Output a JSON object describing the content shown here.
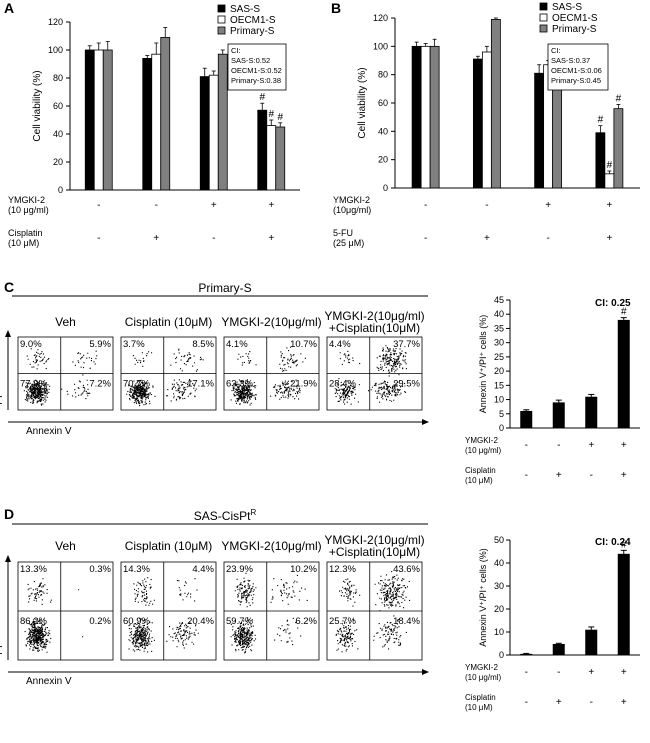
{
  "panel_labels": {
    "A": "A",
    "B": "B",
    "C": "C",
    "D": "D"
  },
  "colors": {
    "sas": "#000000",
    "oecm1": "#ffffff",
    "primary": "#808080"
  },
  "chart_data": [
    {
      "id": "A",
      "type": "bar",
      "ylabel": "Cell viability (%)",
      "ylim": [
        0,
        120
      ],
      "yticks": [
        0,
        20,
        40,
        60,
        80,
        100,
        120
      ],
      "series": [
        {
          "name": "SAS-S",
          "values": [
            100,
            94,
            81,
            57
          ]
        },
        {
          "name": "OECM1-S",
          "values": [
            100,
            97,
            82,
            46
          ]
        },
        {
          "name": "Primary-S",
          "values": [
            100,
            109,
            97,
            45
          ]
        }
      ],
      "errors": [
        [
          3,
          2,
          6,
          5
        ],
        [
          5,
          8,
          3,
          4
        ],
        [
          6,
          7,
          3,
          3
        ]
      ],
      "significance": [
        [
          "",
          "",
          "",
          "#"
        ],
        [
          "",
          "",
          "",
          "#"
        ],
        [
          "",
          "",
          "",
          "#"
        ]
      ],
      "ci_box": [
        "CI:",
        "SAS-S:0.52",
        "OECM1-S:0.52",
        "Primary-S:0.38"
      ],
      "conditions": [
        {
          "label": [
            "YMGKI-2",
            "(10 μg/ml)"
          ],
          "signs": [
            "-",
            "-",
            "+",
            "+"
          ]
        },
        {
          "label": [
            "Cisplatin",
            "(10 μM)"
          ],
          "signs": [
            "-",
            "+",
            "-",
            "+"
          ]
        }
      ]
    },
    {
      "id": "B",
      "type": "bar",
      "ylabel": "Cell viability (%)",
      "ylim": [
        0,
        120
      ],
      "yticks": [
        0,
        20,
        40,
        60,
        80,
        100,
        120
      ],
      "series": [
        {
          "name": "SAS-S",
          "values": [
            100,
            91,
            81,
            39
          ]
        },
        {
          "name": "OECM1-S",
          "values": [
            100,
            96,
            87,
            10
          ]
        },
        {
          "name": "Primary-S",
          "values": [
            100,
            119,
            97,
            56
          ]
        }
      ],
      "errors": [
        [
          3,
          2,
          6,
          5
        ],
        [
          2,
          4,
          3,
          2
        ],
        [
          5,
          1,
          2,
          3
        ]
      ],
      "significance": [
        [
          "",
          "",
          "",
          "#"
        ],
        [
          "",
          "",
          "",
          "#"
        ],
        [
          "",
          "",
          "",
          "#"
        ]
      ],
      "ci_box": [
        "CI:",
        "SAS-S:0.37",
        "OECM1-S:0.06",
        "Primary-S:0.45"
      ],
      "conditions": [
        {
          "label": [
            "YMGKI-2",
            "(10μg/ml)"
          ],
          "signs": [
            "-",
            "-",
            "+",
            "+"
          ]
        },
        {
          "label": [
            "5-FU",
            "(25 μM)"
          ],
          "signs": [
            "-",
            "+",
            "-",
            "+"
          ]
        }
      ]
    },
    {
      "id": "C-bar",
      "type": "bar",
      "ylabel": "Annexin V⁺/PI⁺ cells (%)",
      "ylim": [
        0,
        45
      ],
      "yticks": [
        0,
        5,
        10,
        15,
        20,
        25,
        30,
        35,
        40,
        45
      ],
      "values": [
        6,
        9,
        11,
        38
      ],
      "errors": [
        0.4,
        0.8,
        0.8,
        0.8
      ],
      "significance": [
        "",
        "",
        "",
        "#"
      ],
      "ci": "CI: 0.25",
      "conditions": [
        {
          "label": [
            "YMGKI-2",
            "(10 μg/ml)"
          ],
          "signs": [
            "-",
            "-",
            "+",
            "+"
          ]
        },
        {
          "label": [
            "Cisplatin",
            "(10 μM)"
          ],
          "signs": [
            "-",
            "+",
            "-",
            "+"
          ]
        }
      ]
    },
    {
      "id": "D-bar",
      "type": "bar",
      "ylabel": "Annexin V⁺/PI⁺ cells (%)",
      "ylim": [
        0,
        50
      ],
      "yticks": [
        0,
        10,
        20,
        30,
        40,
        50
      ],
      "values": [
        0.5,
        4.8,
        11,
        44
      ],
      "errors": [
        0.2,
        0.3,
        1.2,
        1.5
      ],
      "significance": [
        "",
        "",
        "",
        "#"
      ],
      "ci": "CI: 0.24",
      "conditions": [
        {
          "label": [
            "YMGKI-2",
            "(10 μg/ml)"
          ],
          "signs": [
            "-",
            "-",
            "+",
            "+"
          ]
        },
        {
          "label": [
            "Cisplatin",
            "(10 μM)"
          ],
          "signs": [
            "-",
            "+",
            "-",
            "+"
          ]
        }
      ]
    }
  ],
  "flow_C": {
    "title": "Primary-S",
    "xlabel": "Annexin V",
    "ylabel": "PI",
    "plots": [
      {
        "label": [
          "Veh"
        ],
        "q": [
          "9.0%",
          "5.9%",
          "77.9%",
          "7.2%"
        ]
      },
      {
        "label": [
          "Cisplatin (10μM)"
        ],
        "q": [
          "3.7%",
          "8.5%",
          "70.7%",
          "17.1%"
        ]
      },
      {
        "label": [
          "YMGKI-2(10μg/ml)"
        ],
        "q": [
          "4.1%",
          "10.7%",
          "63.3%",
          "21.9%"
        ]
      },
      {
        "label": [
          "YMGKI-2(10μg/ml)",
          "+Cisplatin(10μM)"
        ],
        "q": [
          "4.4%",
          "37.7%",
          "28.4%",
          "29.5%"
        ]
      }
    ]
  },
  "flow_D": {
    "title": "SAS-CisPt",
    "title_sup": "R",
    "xlabel": "Annexin V",
    "ylabel": "PI",
    "plots": [
      {
        "label": [
          "Veh"
        ],
        "q": [
          "13.3%",
          "0.3%",
          "86.2%",
          "0.2%"
        ]
      },
      {
        "label": [
          "Cisplatin (10μM)"
        ],
        "q": [
          "14.3%",
          "4.4%",
          "60.9%",
          "20.4%"
        ]
      },
      {
        "label": [
          "YMGKI-2(10μg/ml)"
        ],
        "q": [
          "23.9%",
          "10.2%",
          "59.7%",
          "6.2%"
        ]
      },
      {
        "label": [
          "YMGKI-2(10μg/ml)",
          "+Cisplatin(10μM)"
        ],
        "q": [
          "12.3%",
          "43.6%",
          "25.7%",
          "18.4%"
        ]
      }
    ]
  }
}
